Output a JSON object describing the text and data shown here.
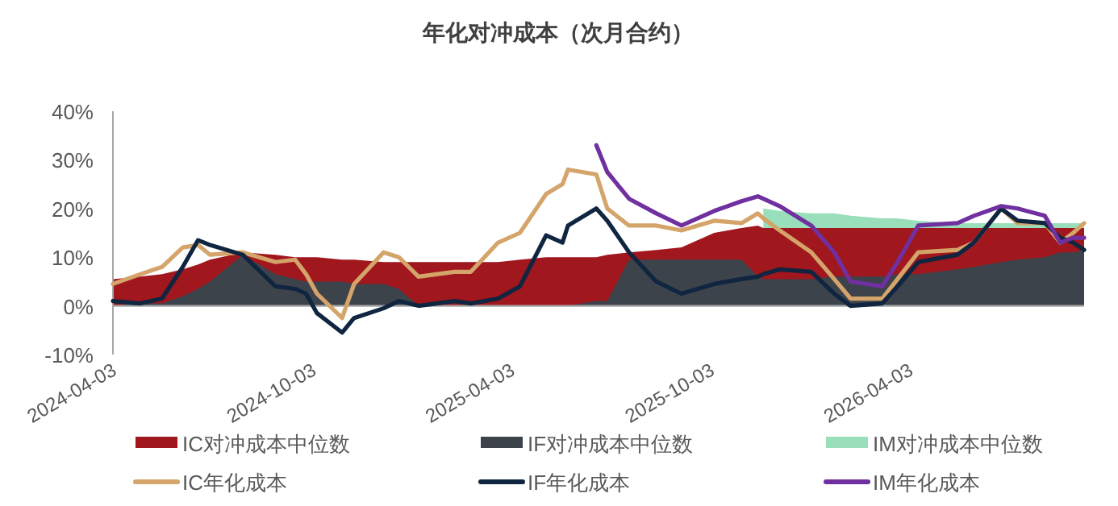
{
  "chart_data": {
    "type": "line",
    "title": "年化对冲成本（次月合约）",
    "x": [
      "2024-04-03",
      "2024-04-28",
      "2024-05-18",
      "2024-06-06",
      "2024-06-20",
      "2024-07-01",
      "2024-07-31",
      "2024-08-30",
      "2024-09-17",
      "2024-09-27",
      "2024-10-07",
      "2024-10-30",
      "2024-11-10",
      "2024-12-07",
      "2024-12-21",
      "2025-01-08",
      "2025-02-10",
      "2025-02-25",
      "2025-03-22",
      "2025-04-11",
      "2025-05-05",
      "2025-05-20",
      "2025-05-25",
      "2025-06-20",
      "2025-06-30",
      "2025-07-20",
      "2025-08-14",
      "2025-09-06",
      "2025-10-06",
      "2025-10-31",
      "2025-11-15",
      "2025-11-20",
      "2025-12-05",
      "2026-01-03",
      "2026-01-24",
      "2026-02-08",
      "2026-03-09",
      "2026-03-23",
      "2026-04-11",
      "2026-05-17",
      "2026-06-01",
      "2026-06-26",
      "2026-07-11",
      "2026-08-05",
      "2026-08-19",
      "2026-08-31",
      "2026-09-10"
    ],
    "xlim": [
      "2024-04-03",
      "2026-09-10"
    ],
    "xticks": [
      "2024-04-03",
      "2024-10-03",
      "2025-04-03",
      "2025-10-03",
      "2026-04-03"
    ],
    "ylim": [
      -10,
      40
    ],
    "yticks": [
      {
        "value": -10,
        "label": "-10%"
      },
      {
        "value": 0,
        "label": "0%"
      },
      {
        "value": 10,
        "label": "10%"
      },
      {
        "value": 20,
        "label": "20%"
      },
      {
        "value": 30,
        "label": "30%"
      },
      {
        "value": 40,
        "label": "40%"
      }
    ],
    "legend": "bottom",
    "series": [
      {
        "name": "IC对冲成本中位数",
        "type": "area",
        "color": "#a0171e",
        "values": [
          5.5,
          6,
          6.5,
          7.5,
          8.5,
          9.5,
          11,
          10.5,
          10,
          10,
          10,
          9.5,
          9.5,
          9,
          9,
          9,
          9,
          9,
          9,
          9.5,
          10,
          10,
          10,
          10,
          10.5,
          11,
          11.5,
          12,
          15,
          16,
          16.5,
          16,
          16,
          16,
          16,
          16,
          16,
          16,
          16,
          16,
          16,
          16,
          16,
          16,
          16,
          16,
          16
        ]
      },
      {
        "name": "IF对冲成本中位数",
        "type": "area",
        "color": "#3d434b",
        "values": [
          0,
          0.5,
          0.5,
          2,
          3.5,
          5,
          10.5,
          6.5,
          5.5,
          5,
          5,
          5,
          4.5,
          4.5,
          3.5,
          0,
          0,
          0,
          0,
          0,
          0,
          0,
          0,
          1,
          1,
          9.5,
          9.5,
          9.5,
          9.5,
          9.5,
          6,
          5.5,
          5.5,
          5.5,
          6,
          6,
          6,
          6.5,
          6.5,
          7.5,
          8,
          9,
          9.5,
          10,
          11,
          11,
          11.5
        ]
      },
      {
        "name": "IM对冲成本中位数",
        "type": "area",
        "color": "#99dfbb",
        "values": [
          null,
          null,
          null,
          null,
          null,
          null,
          null,
          null,
          null,
          null,
          null,
          null,
          null,
          null,
          null,
          null,
          null,
          null,
          null,
          null,
          null,
          null,
          null,
          null,
          null,
          null,
          null,
          null,
          null,
          null,
          null,
          20,
          19.5,
          19,
          19,
          18.5,
          18,
          18,
          17.5,
          17,
          17,
          17,
          17,
          17,
          17,
          17,
          17
        ]
      },
      {
        "name": "IC年化成本",
        "type": "line",
        "color": "#d4a46a",
        "values": [
          4.5,
          6.5,
          8,
          12,
          12.5,
          10.5,
          11,
          9,
          9.5,
          6.5,
          2.5,
          -2.5,
          4.5,
          11,
          10,
          6,
          7,
          7,
          13,
          15,
          23,
          25,
          28,
          27,
          20,
          16.5,
          16.5,
          15.5,
          17.5,
          17,
          19,
          18,
          15.5,
          11,
          5.5,
          1.5,
          1.5,
          5.5,
          11,
          11.5,
          13,
          20,
          17,
          17,
          13,
          15,
          17
        ]
      },
      {
        "name": "IF年化成本",
        "type": "line",
        "color": "#0f2540",
        "values": [
          1,
          0.5,
          1.5,
          8,
          13.5,
          12.5,
          10.5,
          4,
          3.5,
          2.5,
          -1.5,
          -5.5,
          -2.5,
          -0.5,
          1,
          0,
          1,
          0.5,
          1.5,
          4,
          14.5,
          13,
          16.5,
          20,
          17.5,
          11,
          5,
          2.5,
          4.5,
          5.5,
          6,
          6.5,
          7.5,
          7,
          2.5,
          0,
          0.5,
          4,
          9,
          10.5,
          13,
          20,
          17.5,
          17,
          14,
          13,
          11.5
        ]
      },
      {
        "name": "IM年化成本",
        "type": "line",
        "color": "#7030a0",
        "values": [
          null,
          null,
          null,
          null,
          null,
          null,
          null,
          null,
          null,
          null,
          null,
          null,
          null,
          null,
          null,
          null,
          null,
          null,
          null,
          null,
          null,
          null,
          null,
          33,
          27.5,
          22,
          19,
          16.5,
          19.5,
          21.5,
          22.5,
          22,
          20.5,
          16.5,
          11,
          5,
          4,
          9,
          16.5,
          17,
          18.5,
          20.5,
          20,
          18.5,
          13,
          14,
          14
        ]
      }
    ]
  }
}
